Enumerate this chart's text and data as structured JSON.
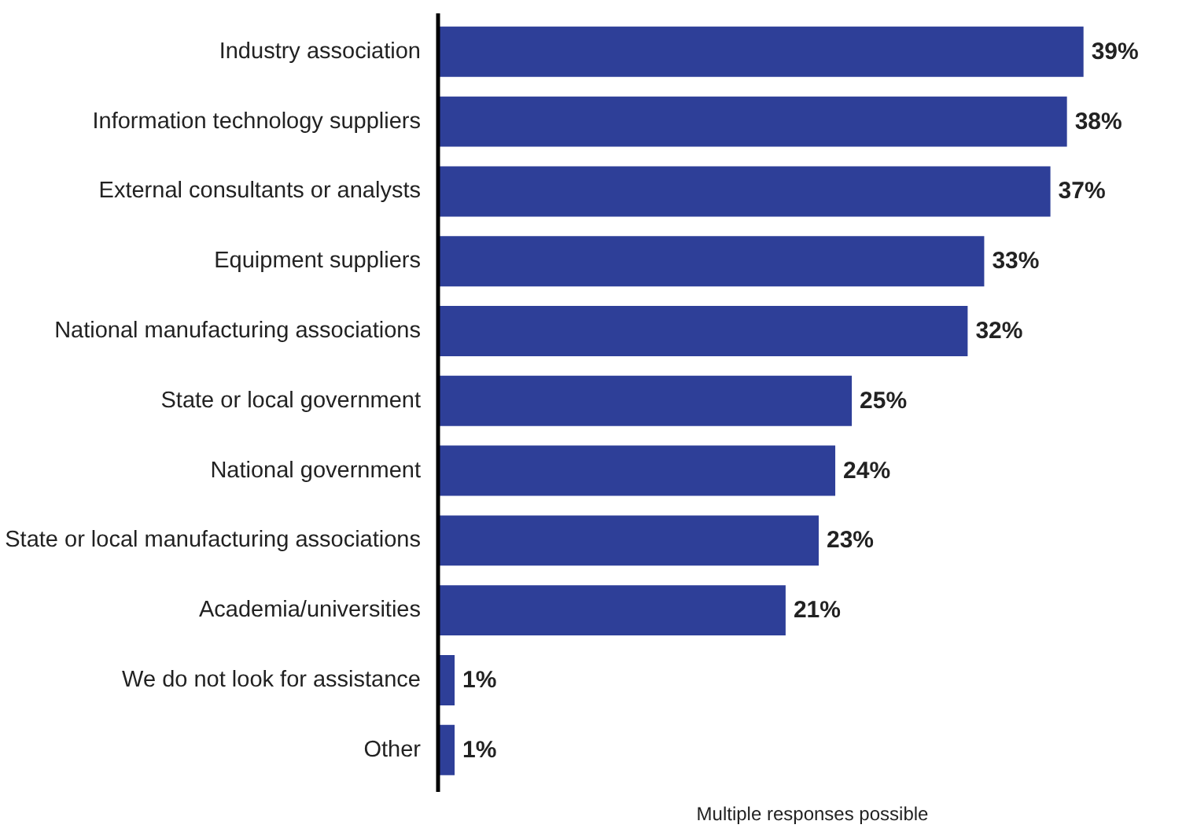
{
  "chart_data": {
    "type": "bar",
    "orientation": "horizontal",
    "categories": [
      "Industry association",
      "Information technology suppliers",
      "External consultants or analysts",
      "Equipment suppliers",
      "National manufacturing associations",
      "State or local government",
      "National government",
      "State or local manufacturing associations",
      "Academia/universities",
      "We do not look for assistance",
      "Other"
    ],
    "values": [
      39,
      38,
      37,
      33,
      32,
      25,
      24,
      23,
      21,
      1,
      1
    ],
    "value_labels": [
      "39%",
      "38%",
      "37%",
      "33%",
      "32%",
      "25%",
      "24%",
      "23%",
      "21%",
      "1%",
      "1%"
    ],
    "color": "#2e3f98",
    "annotations": [
      "Multiple responses possible"
    ],
    "grid": false
  }
}
